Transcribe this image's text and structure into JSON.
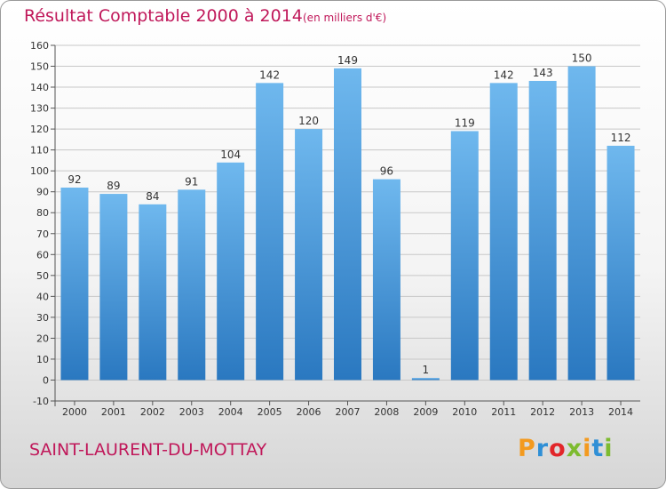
{
  "header": {
    "title": "Résultat Comptable 2000 à 2014",
    "subtitle": "(en milliers d'€)"
  },
  "footer": {
    "commune": "SAINT-LAURENT-DU-MOTTAY",
    "brand_letters": [
      "P",
      "r",
      "o",
      "x",
      "i",
      "t",
      "i"
    ],
    "brand_colors": [
      "#f39a1f",
      "#2f8fd6",
      "#e2262a",
      "#7dbb2f",
      "#f39a1f",
      "#2f8fd6",
      "#7dbb2f"
    ]
  },
  "colors": {
    "bar_light": "#6fb8ee",
    "bar_dark": "#2a78c0",
    "title": "#c0185a",
    "grid": "#c8c8c8"
  },
  "chart_data": {
    "type": "bar",
    "title": "Résultat Comptable 2000 à 2014",
    "subtitle": "(en milliers d'€)",
    "xlabel": "",
    "ylabel": "",
    "categories": [
      "2000",
      "2001",
      "2002",
      "2003",
      "2004",
      "2005",
      "2006",
      "2007",
      "2008",
      "2009",
      "2010",
      "2011",
      "2012",
      "2013",
      "2014"
    ],
    "values": [
      92,
      89,
      84,
      91,
      104,
      142,
      120,
      149,
      96,
      1,
      119,
      142,
      143,
      150,
      112
    ],
    "ylim": [
      -10,
      160
    ],
    "yticks": [
      -10,
      0,
      10,
      20,
      30,
      40,
      50,
      60,
      70,
      80,
      90,
      100,
      110,
      120,
      130,
      140,
      150,
      160
    ],
    "grid": true,
    "legend": "none"
  }
}
